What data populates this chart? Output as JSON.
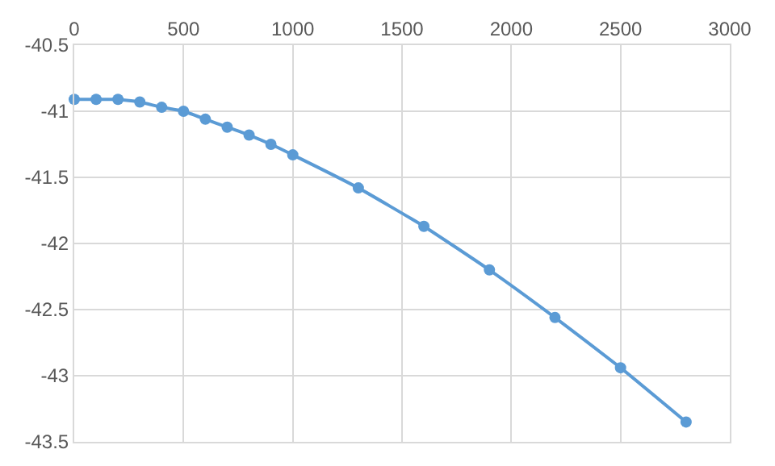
{
  "chart_data": {
    "type": "line",
    "x": [
      0,
      100,
      200,
      300,
      400,
      500,
      600,
      700,
      800,
      900,
      1000,
      1300,
      1600,
      1900,
      2200,
      2500,
      2800
    ],
    "series": [
      {
        "color": "#5b9bd5",
        "values": [
          -40.91,
          -40.91,
          -40.91,
          -40.93,
          -40.97,
          -41.0,
          -41.06,
          -41.12,
          -41.18,
          -41.25,
          -41.33,
          -41.58,
          -41.87,
          -42.2,
          -42.56,
          -42.94,
          -43.35
        ]
      }
    ],
    "xlim": [
      0,
      3000
    ],
    "xticks": [
      0,
      500,
      1000,
      1500,
      2000,
      2500,
      3000
    ],
    "ylim": [
      -43.5,
      -40.5
    ],
    "yticks": [
      -43.5,
      -43,
      -42.5,
      -42,
      -41.5,
      -41,
      -40.5
    ],
    "grid": true,
    "legend": false,
    "marker": "circle",
    "line_style": "solid"
  }
}
